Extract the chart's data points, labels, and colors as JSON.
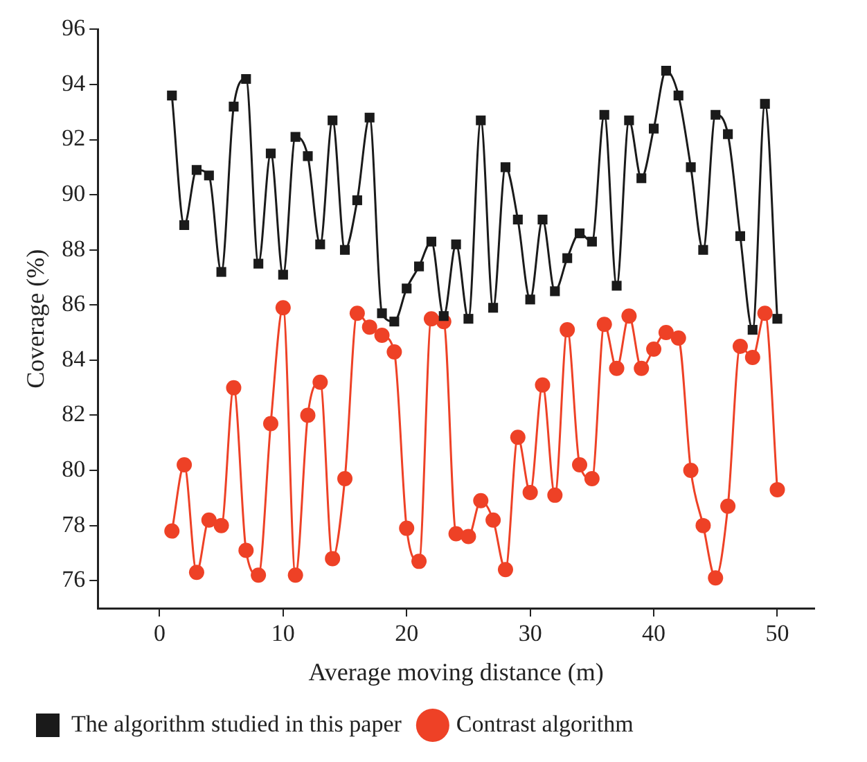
{
  "chart_data": {
    "type": "line",
    "xlabel": "Average moving distance (m)",
    "ylabel": "Coverage (%)",
    "x": [
      1,
      2,
      3,
      4,
      5,
      6,
      7,
      8,
      9,
      10,
      11,
      12,
      13,
      14,
      15,
      16,
      17,
      18,
      19,
      20,
      21,
      22,
      23,
      24,
      25,
      26,
      27,
      28,
      29,
      30,
      31,
      32,
      33,
      34,
      35,
      36,
      37,
      38,
      39,
      40,
      41,
      42,
      43,
      44,
      45,
      46,
      47,
      48,
      49,
      50
    ],
    "series": [
      {
        "name": "The algorithm studied in this paper",
        "color": "#1a1a1a",
        "marker": "square",
        "values": [
          93.6,
          88.9,
          90.9,
          90.7,
          87.2,
          93.2,
          94.2,
          87.5,
          91.5,
          87.1,
          92.1,
          91.4,
          88.2,
          92.7,
          88.0,
          89.8,
          92.8,
          85.7,
          85.4,
          86.6,
          87.4,
          88.3,
          85.6,
          88.2,
          85.5,
          92.7,
          85.9,
          91.0,
          89.1,
          86.2,
          89.1,
          86.5,
          87.7,
          88.6,
          88.3,
          92.9,
          86.7,
          92.7,
          90.6,
          92.4,
          94.5,
          93.6,
          91.0,
          88.0,
          92.9,
          92.2,
          88.5,
          85.1,
          93.3,
          85.5
        ]
      },
      {
        "name": "Contrast algorithm",
        "color": "#ee4126",
        "marker": "circle",
        "values": [
          77.8,
          80.2,
          76.3,
          78.2,
          78.0,
          83.0,
          77.1,
          76.2,
          81.7,
          85.9,
          76.2,
          82.0,
          83.2,
          76.8,
          79.7,
          85.7,
          85.2,
          84.9,
          84.3,
          77.9,
          76.7,
          85.5,
          85.4,
          77.7,
          77.6,
          78.9,
          78.2,
          76.4,
          81.2,
          79.2,
          83.1,
          79.1,
          85.1,
          80.2,
          79.7,
          85.3,
          83.7,
          85.6,
          83.7,
          84.4,
          85.0,
          84.8,
          80.0,
          78.0,
          76.1,
          78.7,
          84.5,
          84.1,
          85.7,
          79.3
        ]
      }
    ],
    "xlim": [
      -5,
      53
    ],
    "xticks": [
      0,
      10,
      20,
      30,
      40,
      50
    ],
    "ylim": [
      75,
      96
    ],
    "yticks": [
      76,
      78,
      80,
      82,
      84,
      86,
      88,
      90,
      92,
      94,
      96
    ],
    "grid": false,
    "legend": "bottom",
    "line_style": "solid"
  }
}
